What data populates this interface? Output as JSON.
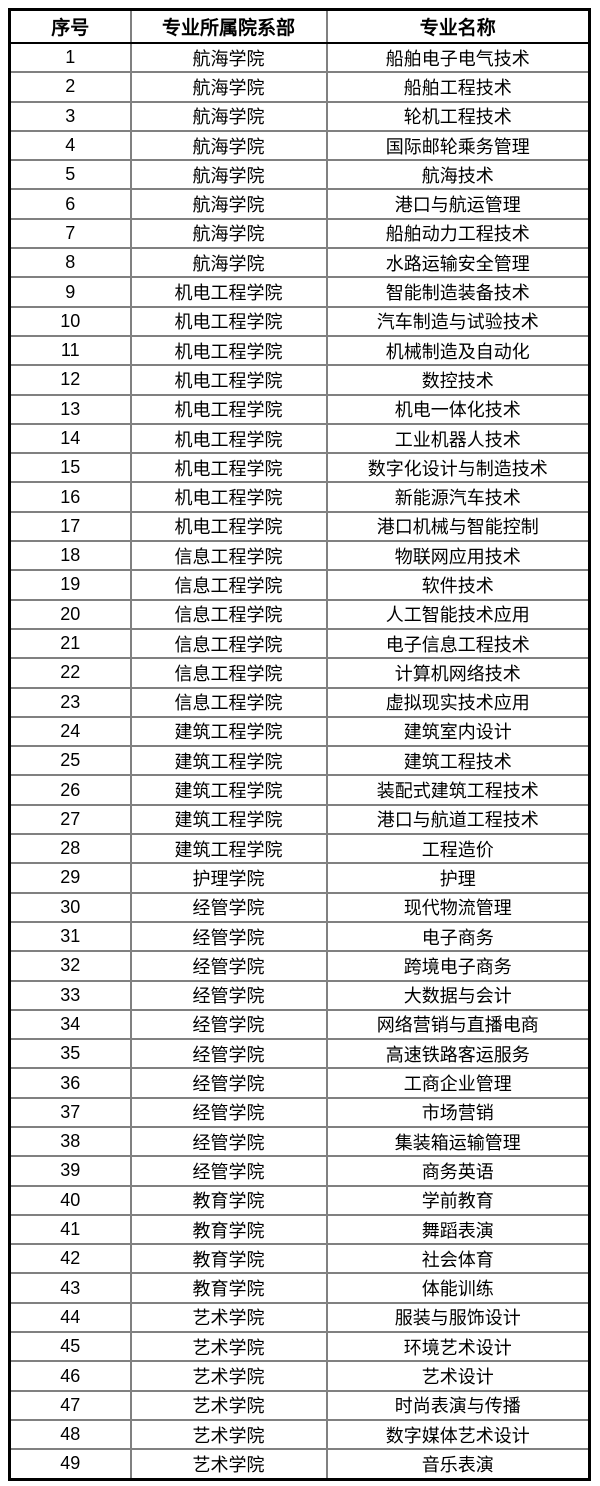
{
  "table": {
    "headers": [
      "序号",
      "专业所属院系部",
      "专业名称"
    ],
    "rows": [
      {
        "no": "1",
        "dept": "航海学院",
        "major": "船舶电子电气技术"
      },
      {
        "no": "2",
        "dept": "航海学院",
        "major": "船舶工程技术"
      },
      {
        "no": "3",
        "dept": "航海学院",
        "major": "轮机工程技术"
      },
      {
        "no": "4",
        "dept": "航海学院",
        "major": "国际邮轮乘务管理"
      },
      {
        "no": "5",
        "dept": "航海学院",
        "major": "航海技术"
      },
      {
        "no": "6",
        "dept": "航海学院",
        "major": "港口与航运管理"
      },
      {
        "no": "7",
        "dept": "航海学院",
        "major": "船舶动力工程技术"
      },
      {
        "no": "8",
        "dept": "航海学院",
        "major": "水路运输安全管理"
      },
      {
        "no": "9",
        "dept": "机电工程学院",
        "major": "智能制造装备技术"
      },
      {
        "no": "10",
        "dept": "机电工程学院",
        "major": "汽车制造与试验技术"
      },
      {
        "no": "11",
        "dept": "机电工程学院",
        "major": "机械制造及自动化"
      },
      {
        "no": "12",
        "dept": "机电工程学院",
        "major": "数控技术"
      },
      {
        "no": "13",
        "dept": "机电工程学院",
        "major": "机电一体化技术"
      },
      {
        "no": "14",
        "dept": "机电工程学院",
        "major": "工业机器人技术"
      },
      {
        "no": "15",
        "dept": "机电工程学院",
        "major": "数字化设计与制造技术"
      },
      {
        "no": "16",
        "dept": "机电工程学院",
        "major": "新能源汽车技术"
      },
      {
        "no": "17",
        "dept": "机电工程学院",
        "major": "港口机械与智能控制"
      },
      {
        "no": "18",
        "dept": "信息工程学院",
        "major": "物联网应用技术"
      },
      {
        "no": "19",
        "dept": "信息工程学院",
        "major": "软件技术"
      },
      {
        "no": "20",
        "dept": "信息工程学院",
        "major": "人工智能技术应用"
      },
      {
        "no": "21",
        "dept": "信息工程学院",
        "major": "电子信息工程技术"
      },
      {
        "no": "22",
        "dept": "信息工程学院",
        "major": "计算机网络技术"
      },
      {
        "no": "23",
        "dept": "信息工程学院",
        "major": "虚拟现实技术应用"
      },
      {
        "no": "24",
        "dept": "建筑工程学院",
        "major": "建筑室内设计"
      },
      {
        "no": "25",
        "dept": "建筑工程学院",
        "major": "建筑工程技术"
      },
      {
        "no": "26",
        "dept": "建筑工程学院",
        "major": "装配式建筑工程技术"
      },
      {
        "no": "27",
        "dept": "建筑工程学院",
        "major": "港口与航道工程技术"
      },
      {
        "no": "28",
        "dept": "建筑工程学院",
        "major": "工程造价"
      },
      {
        "no": "29",
        "dept": "护理学院",
        "major": "护理"
      },
      {
        "no": "30",
        "dept": "经管学院",
        "major": "现代物流管理"
      },
      {
        "no": "31",
        "dept": "经管学院",
        "major": "电子商务"
      },
      {
        "no": "32",
        "dept": "经管学院",
        "major": "跨境电子商务"
      },
      {
        "no": "33",
        "dept": "经管学院",
        "major": "大数据与会计"
      },
      {
        "no": "34",
        "dept": "经管学院",
        "major": "网络营销与直播电商"
      },
      {
        "no": "35",
        "dept": "经管学院",
        "major": "高速铁路客运服务"
      },
      {
        "no": "36",
        "dept": "经管学院",
        "major": "工商企业管理"
      },
      {
        "no": "37",
        "dept": "经管学院",
        "major": "市场营销"
      },
      {
        "no": "38",
        "dept": "经管学院",
        "major": "集装箱运输管理"
      },
      {
        "no": "39",
        "dept": "经管学院",
        "major": "商务英语"
      },
      {
        "no": "40",
        "dept": "教育学院",
        "major": "学前教育"
      },
      {
        "no": "41",
        "dept": "教育学院",
        "major": "舞蹈表演"
      },
      {
        "no": "42",
        "dept": "教育学院",
        "major": "社会体育"
      },
      {
        "no": "43",
        "dept": "教育学院",
        "major": "体能训练"
      },
      {
        "no": "44",
        "dept": "艺术学院",
        "major": "服装与服饰设计"
      },
      {
        "no": "45",
        "dept": "艺术学院",
        "major": "环境艺术设计"
      },
      {
        "no": "46",
        "dept": "艺术学院",
        "major": "艺术设计"
      },
      {
        "no": "47",
        "dept": "艺术学院",
        "major": "时尚表演与传播"
      },
      {
        "no": "48",
        "dept": "艺术学院",
        "major": "数字媒体艺术设计"
      },
      {
        "no": "49",
        "dept": "艺术学院",
        "major": "音乐表演"
      }
    ]
  }
}
